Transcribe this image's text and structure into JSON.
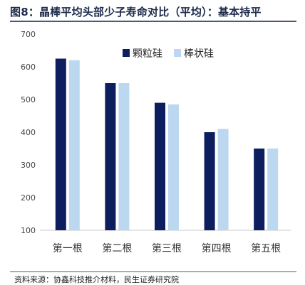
{
  "header": {
    "title": "图8：晶棒平均头部少子寿命对比（平均）：基本持平"
  },
  "footer": {
    "source": "资料来源：协鑫科技推介材料，民生证券研究院"
  },
  "chart_data": {
    "type": "bar",
    "title": "",
    "xlabel": "",
    "ylabel": "",
    "categories": [
      "第一根",
      "第二根",
      "第三根",
      "第四根",
      "第五根"
    ],
    "series": [
      {
        "name": "颗粒硅",
        "values": [
          625,
          550,
          490,
          400,
          350
        ],
        "color": "#0d1e5e"
      },
      {
        "name": "棒状硅",
        "values": [
          620,
          550,
          485,
          410,
          350
        ],
        "color": "#bcd7f0"
      }
    ],
    "ylim": [
      100,
      700
    ],
    "yticks": [
      100,
      200,
      300,
      400,
      500,
      600,
      700
    ],
    "grid": false,
    "legend_position": "top-right"
  }
}
